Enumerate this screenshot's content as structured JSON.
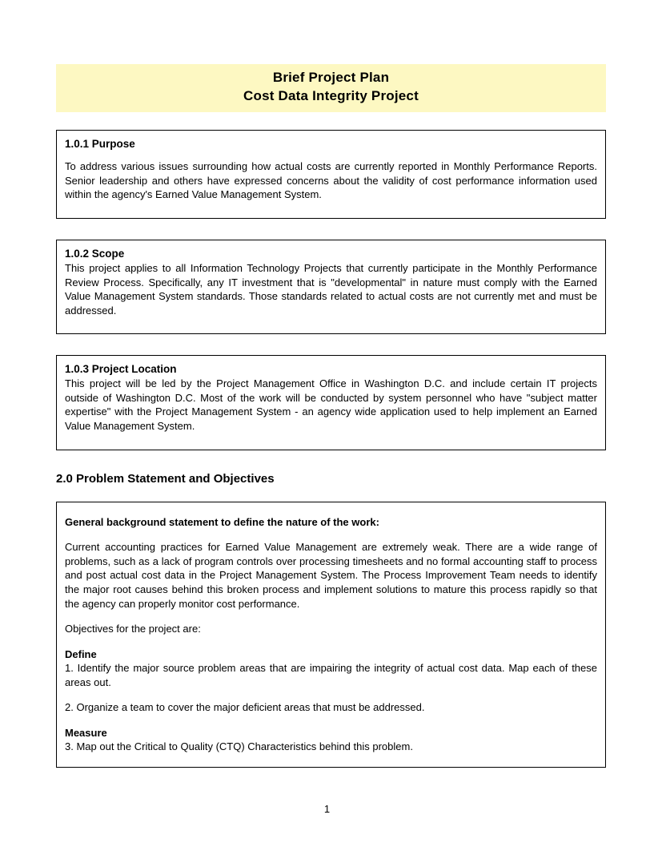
{
  "title": {
    "line1": "Brief Project Plan",
    "line2": "Cost Data Integrity Project",
    "bg_color": "#fdf8c2",
    "font_size": 17
  },
  "sections": {
    "purpose": {
      "heading": "1.0.1 Purpose",
      "body": "To address various issues surrounding how actual costs are currently reported in Monthly Performance Reports. Senior leadership and others have expressed concerns about the validity of cost performance information used within the agency's Earned Value Management System."
    },
    "scope": {
      "heading": "1.0.2 Scope",
      "body": "This project applies to all Information Technology Projects that currently participate in the Monthly Performance Review Process. Specifically, any IT investment that is \"developmental\" in nature must comply with the Earned Value Management System standards. Those standards related to actual costs are not currently met and must be addressed."
    },
    "location": {
      "heading": "1.0.3 Project Location",
      "body": "This project will be led by the Project Management Office in Washington D.C. and include certain IT projects outside of Washington D.C. Most of the work will be conducted by system personnel who have \"subject matter expertise\" with the Project Management System - an agency wide application used to help implement an Earned Value Management System."
    }
  },
  "problem": {
    "section_heading": "2.0 Problem Statement and Objectives",
    "background_label": "General background statement to define the nature of the work:",
    "background_body": "Current accounting practices for Earned Value Management are extremely weak. There are a wide range of problems, such as a lack of program controls over processing timesheets and no formal accounting staff to process and post actual cost data in the Project Management System. The Process Improvement Team needs to identify the major root causes behind this broken process and implement solutions to mature this process rapidly so that the agency can properly monitor cost performance.",
    "objectives_intro": "Objectives for the project are:",
    "define_label": "Define",
    "define_1": "1. Identify the major source problem areas that are impairing the integrity of actual cost data. Map each of these areas out.",
    "define_2": "2. Organize a team to cover the major deficient areas that must be addressed.",
    "measure_label": "Measure",
    "measure_1": "3. Map out the Critical to Quality (CTQ) Characteristics behind this problem."
  },
  "page_number": "1",
  "colors": {
    "text": "#000000",
    "border": "#000000",
    "page_bg": "#ffffff"
  }
}
